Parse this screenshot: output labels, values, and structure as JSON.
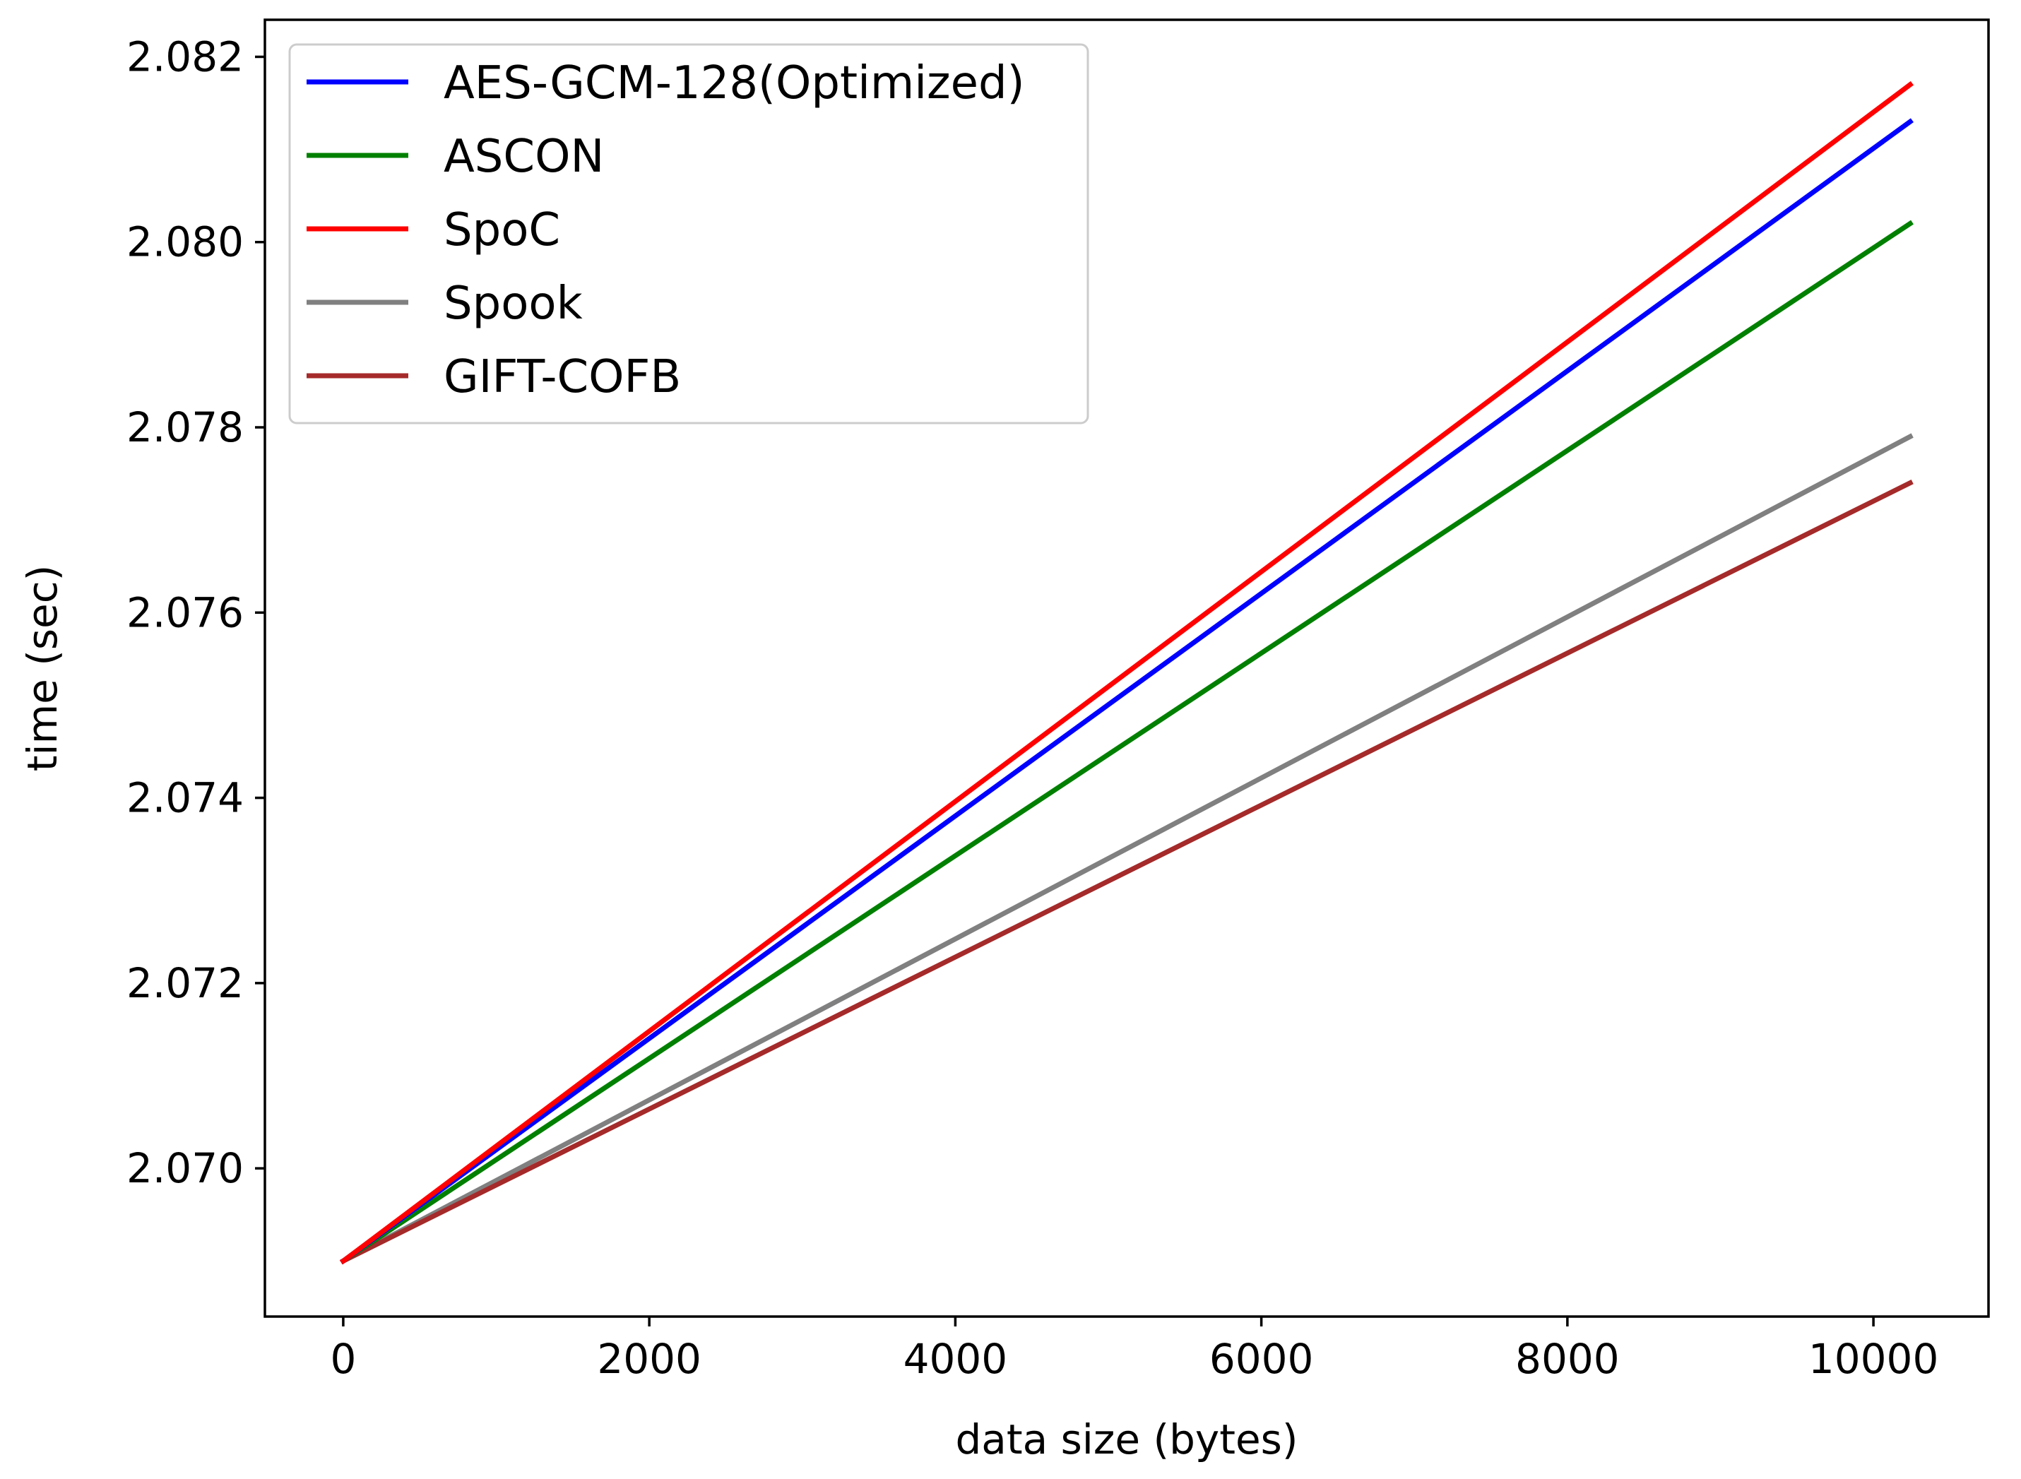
{
  "chart_data": {
    "type": "line",
    "title": "",
    "xlabel": "data size (bytes)",
    "ylabel": "time (sec)",
    "xlim": [
      -512,
      10752
    ],
    "ylim": [
      2.0684,
      2.0824
    ],
    "xticks": [
      0,
      2000,
      4000,
      6000,
      8000,
      10000
    ],
    "xtick_labels": [
      "0",
      "2000",
      "4000",
      "6000",
      "8000",
      "10000"
    ],
    "yticks": [
      2.07,
      2.072,
      2.074,
      2.076,
      2.078,
      2.08,
      2.082
    ],
    "ytick_labels": [
      "2.070",
      "2.072",
      "2.074",
      "2.076",
      "2.078",
      "2.080",
      "2.082"
    ],
    "grid": false,
    "legend_position": "top-left",
    "x": [
      0,
      10240
    ],
    "series": [
      {
        "name": "AES-GCM-128(Optimized)",
        "color": "#0000ff",
        "values": [
          2.069,
          2.0813
        ]
      },
      {
        "name": "ASCON",
        "color": "#008000",
        "values": [
          2.069,
          2.0802
        ]
      },
      {
        "name": "SpoC",
        "color": "#ff0000",
        "values": [
          2.069,
          2.0817
        ]
      },
      {
        "name": "Spook",
        "color": "#808080",
        "values": [
          2.069,
          2.0779
        ]
      },
      {
        "name": "GIFT-COFB",
        "color": "#a52a2a",
        "values": [
          2.069,
          2.0774
        ]
      }
    ]
  }
}
